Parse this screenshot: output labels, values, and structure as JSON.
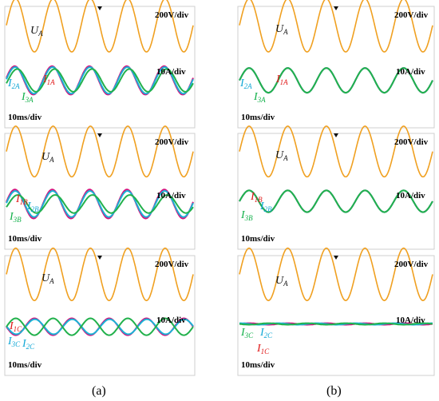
{
  "figure": {
    "labels": [
      "(a)",
      "(b)"
    ]
  },
  "colors": {
    "UA": "#F0A020",
    "I1": "#D4147F",
    "I2": "#1AB3D6",
    "I3": "#22B14C",
    "text_red": "#E01818",
    "text_cyan": "#12A8D6",
    "text_green": "#12B04A"
  },
  "chart_data": [
    {
      "type": "line",
      "panel": "(a) row 1",
      "scales": [
        "200V/div",
        "10A/div",
        "10ms/div"
      ],
      "x_unit": "ms",
      "x_range": [
        0,
        100
      ],
      "series": [
        {
          "name": "UA",
          "kind": "voltage",
          "period_ms": 20,
          "amplitude_div": 1.4,
          "offset_div": 2.2,
          "phase_deg": 0
        },
        {
          "name": "I1A",
          "kind": "current",
          "period_ms": 20,
          "amplitude_div": 0.75,
          "offset_div": -0.7,
          "phase_deg": 10
        },
        {
          "name": "I2A",
          "kind": "current",
          "period_ms": 20,
          "amplitude_div": 0.7,
          "offset_div": -0.7,
          "phase_deg": 5
        },
        {
          "name": "I3A",
          "kind": "current",
          "period_ms": 20,
          "amplitude_div": 0.6,
          "offset_div": -0.7,
          "phase_deg": -15
        }
      ],
      "labels": [
        {
          "sub": "A",
          "main": "U",
          "color": "black"
        },
        {
          "sub": "1A",
          "main": "I",
          "color": "red"
        },
        {
          "sub": "2A",
          "main": "I",
          "color": "cyan"
        },
        {
          "sub": "3A",
          "main": "I",
          "color": "green"
        }
      ]
    },
    {
      "type": "line",
      "panel": "(b) row 1",
      "scales": [
        "200V/div",
        "10A/div",
        "10ms/div"
      ],
      "x_unit": "ms",
      "x_range": [
        0,
        100
      ],
      "series": [
        {
          "name": "UA",
          "kind": "voltage",
          "period_ms": 20,
          "amplitude_div": 1.4,
          "offset_div": 2.2,
          "phase_deg": 0
        },
        {
          "name": "I1A",
          "kind": "current",
          "period_ms": 20,
          "amplitude_div": 0.65,
          "offset_div": -0.7,
          "phase_deg": 0
        },
        {
          "name": "I2A",
          "kind": "current",
          "period_ms": 20,
          "amplitude_div": 0.65,
          "offset_div": -0.7,
          "phase_deg": 0
        },
        {
          "name": "I3A",
          "kind": "current",
          "period_ms": 20,
          "amplitude_div": 0.65,
          "offset_div": -0.7,
          "phase_deg": 0
        }
      ],
      "labels": [
        {
          "sub": "A",
          "main": "U",
          "color": "black"
        },
        {
          "sub": "1A",
          "main": "I",
          "color": "red"
        },
        {
          "sub": "2A",
          "main": "I",
          "color": "cyan"
        },
        {
          "sub": "3A",
          "main": "I",
          "color": "green"
        }
      ]
    },
    {
      "type": "line",
      "panel": "(a) row 2",
      "scales": [
        "200V/div",
        "10A/div",
        "10ms/div"
      ],
      "x_unit": "ms",
      "x_range": [
        0,
        100
      ],
      "series": [
        {
          "name": "UA",
          "kind": "voltage",
          "period_ms": 20,
          "amplitude_div": 1.4,
          "offset_div": 2.2,
          "phase_deg": 0
        },
        {
          "name": "I1B",
          "kind": "current",
          "period_ms": 20,
          "amplitude_div": 0.8,
          "offset_div": -0.7,
          "phase_deg": 8
        },
        {
          "name": "I2B",
          "kind": "current",
          "period_ms": 20,
          "amplitude_div": 0.72,
          "offset_div": -0.7,
          "phase_deg": 4
        },
        {
          "name": "I3B",
          "kind": "current",
          "period_ms": 20,
          "amplitude_div": 0.5,
          "offset_div": -0.7,
          "phase_deg": -20
        }
      ],
      "labels": [
        {
          "sub": "A",
          "main": "U",
          "color": "black"
        },
        {
          "sub": "1B",
          "main": "I",
          "color": "red"
        },
        {
          "sub": "2B",
          "main": "I",
          "color": "cyan"
        },
        {
          "sub": "3B",
          "main": "I",
          "color": "green"
        }
      ]
    },
    {
      "type": "line",
      "panel": "(b) row 2",
      "scales": [
        "200V/div",
        "10A/div",
        "10ms/div"
      ],
      "x_unit": "ms",
      "x_range": [
        0,
        100
      ],
      "series": [
        {
          "name": "UA",
          "kind": "voltage",
          "period_ms": 20,
          "amplitude_div": 1.4,
          "offset_div": 2.2,
          "phase_deg": 0
        },
        {
          "name": "I1B",
          "kind": "current",
          "period_ms": 20,
          "amplitude_div": 0.6,
          "offset_div": -0.55,
          "phase_deg": 0
        },
        {
          "name": "I2B",
          "kind": "current",
          "period_ms": 20,
          "amplitude_div": 0.6,
          "offset_div": -0.55,
          "phase_deg": 0
        },
        {
          "name": "I3B",
          "kind": "current",
          "period_ms": 20,
          "amplitude_div": 0.6,
          "offset_div": -0.55,
          "phase_deg": 0
        }
      ],
      "labels": [
        {
          "sub": "A",
          "main": "U",
          "color": "black"
        },
        {
          "sub": "1B",
          "main": "I",
          "color": "red"
        },
        {
          "sub": "2B",
          "main": "I",
          "color": "cyan"
        },
        {
          "sub": "3B",
          "main": "I",
          "color": "green"
        }
      ]
    },
    {
      "type": "line",
      "panel": "(a) row 3",
      "scales": [
        "200V/div",
        "10A/div",
        "10ms/div"
      ],
      "x_unit": "ms",
      "x_range": [
        0,
        100
      ],
      "series": [
        {
          "name": "UA",
          "kind": "voltage",
          "period_ms": 20,
          "amplitude_div": 1.4,
          "offset_div": 2.2,
          "phase_deg": 0
        },
        {
          "name": "I1C",
          "kind": "current",
          "period_ms": 20,
          "amplitude_div": 0.45,
          "offset_div": -0.6,
          "phase_deg": 180
        },
        {
          "name": "I2C",
          "kind": "current",
          "period_ms": 20,
          "amplitude_div": 0.4,
          "offset_div": -0.6,
          "phase_deg": 175
        },
        {
          "name": "I3C",
          "kind": "current",
          "period_ms": 20,
          "amplitude_div": 0.45,
          "offset_div": -0.6,
          "phase_deg": 0
        }
      ],
      "labels": [
        {
          "sub": "A",
          "main": "U",
          "color": "black"
        },
        {
          "sub": "1C",
          "main": "I",
          "color": "red"
        },
        {
          "sub": "3C",
          "main": "I",
          "color": "cyan"
        },
        {
          "sub": "2C",
          "main": "I",
          "color": "cyan"
        }
      ]
    },
    {
      "type": "line",
      "panel": "(b) row 3",
      "scales": [
        "200V/div",
        "10A/div",
        "10ms/div"
      ],
      "x_unit": "ms",
      "x_range": [
        0,
        100
      ],
      "series": [
        {
          "name": "UA",
          "kind": "voltage",
          "period_ms": 20,
          "amplitude_div": 1.4,
          "offset_div": 2.2,
          "phase_deg": 0
        },
        {
          "name": "I1C",
          "kind": "current",
          "period_ms": 20,
          "amplitude_div": 0.04,
          "offset_div": -0.45,
          "phase_deg": 0
        },
        {
          "name": "I2C",
          "kind": "current",
          "period_ms": 20,
          "amplitude_div": 0.04,
          "offset_div": -0.45,
          "phase_deg": 90
        },
        {
          "name": "I3C",
          "kind": "current",
          "period_ms": 20,
          "amplitude_div": 0.04,
          "offset_div": -0.45,
          "phase_deg": 180
        }
      ],
      "labels": [
        {
          "sub": "A",
          "main": "U",
          "color": "black"
        },
        {
          "sub": "3C",
          "main": "I",
          "color": "green"
        },
        {
          "sub": "2C",
          "main": "I",
          "color": "cyan"
        },
        {
          "sub": "1C",
          "main": "I",
          "color": "red"
        }
      ]
    }
  ]
}
